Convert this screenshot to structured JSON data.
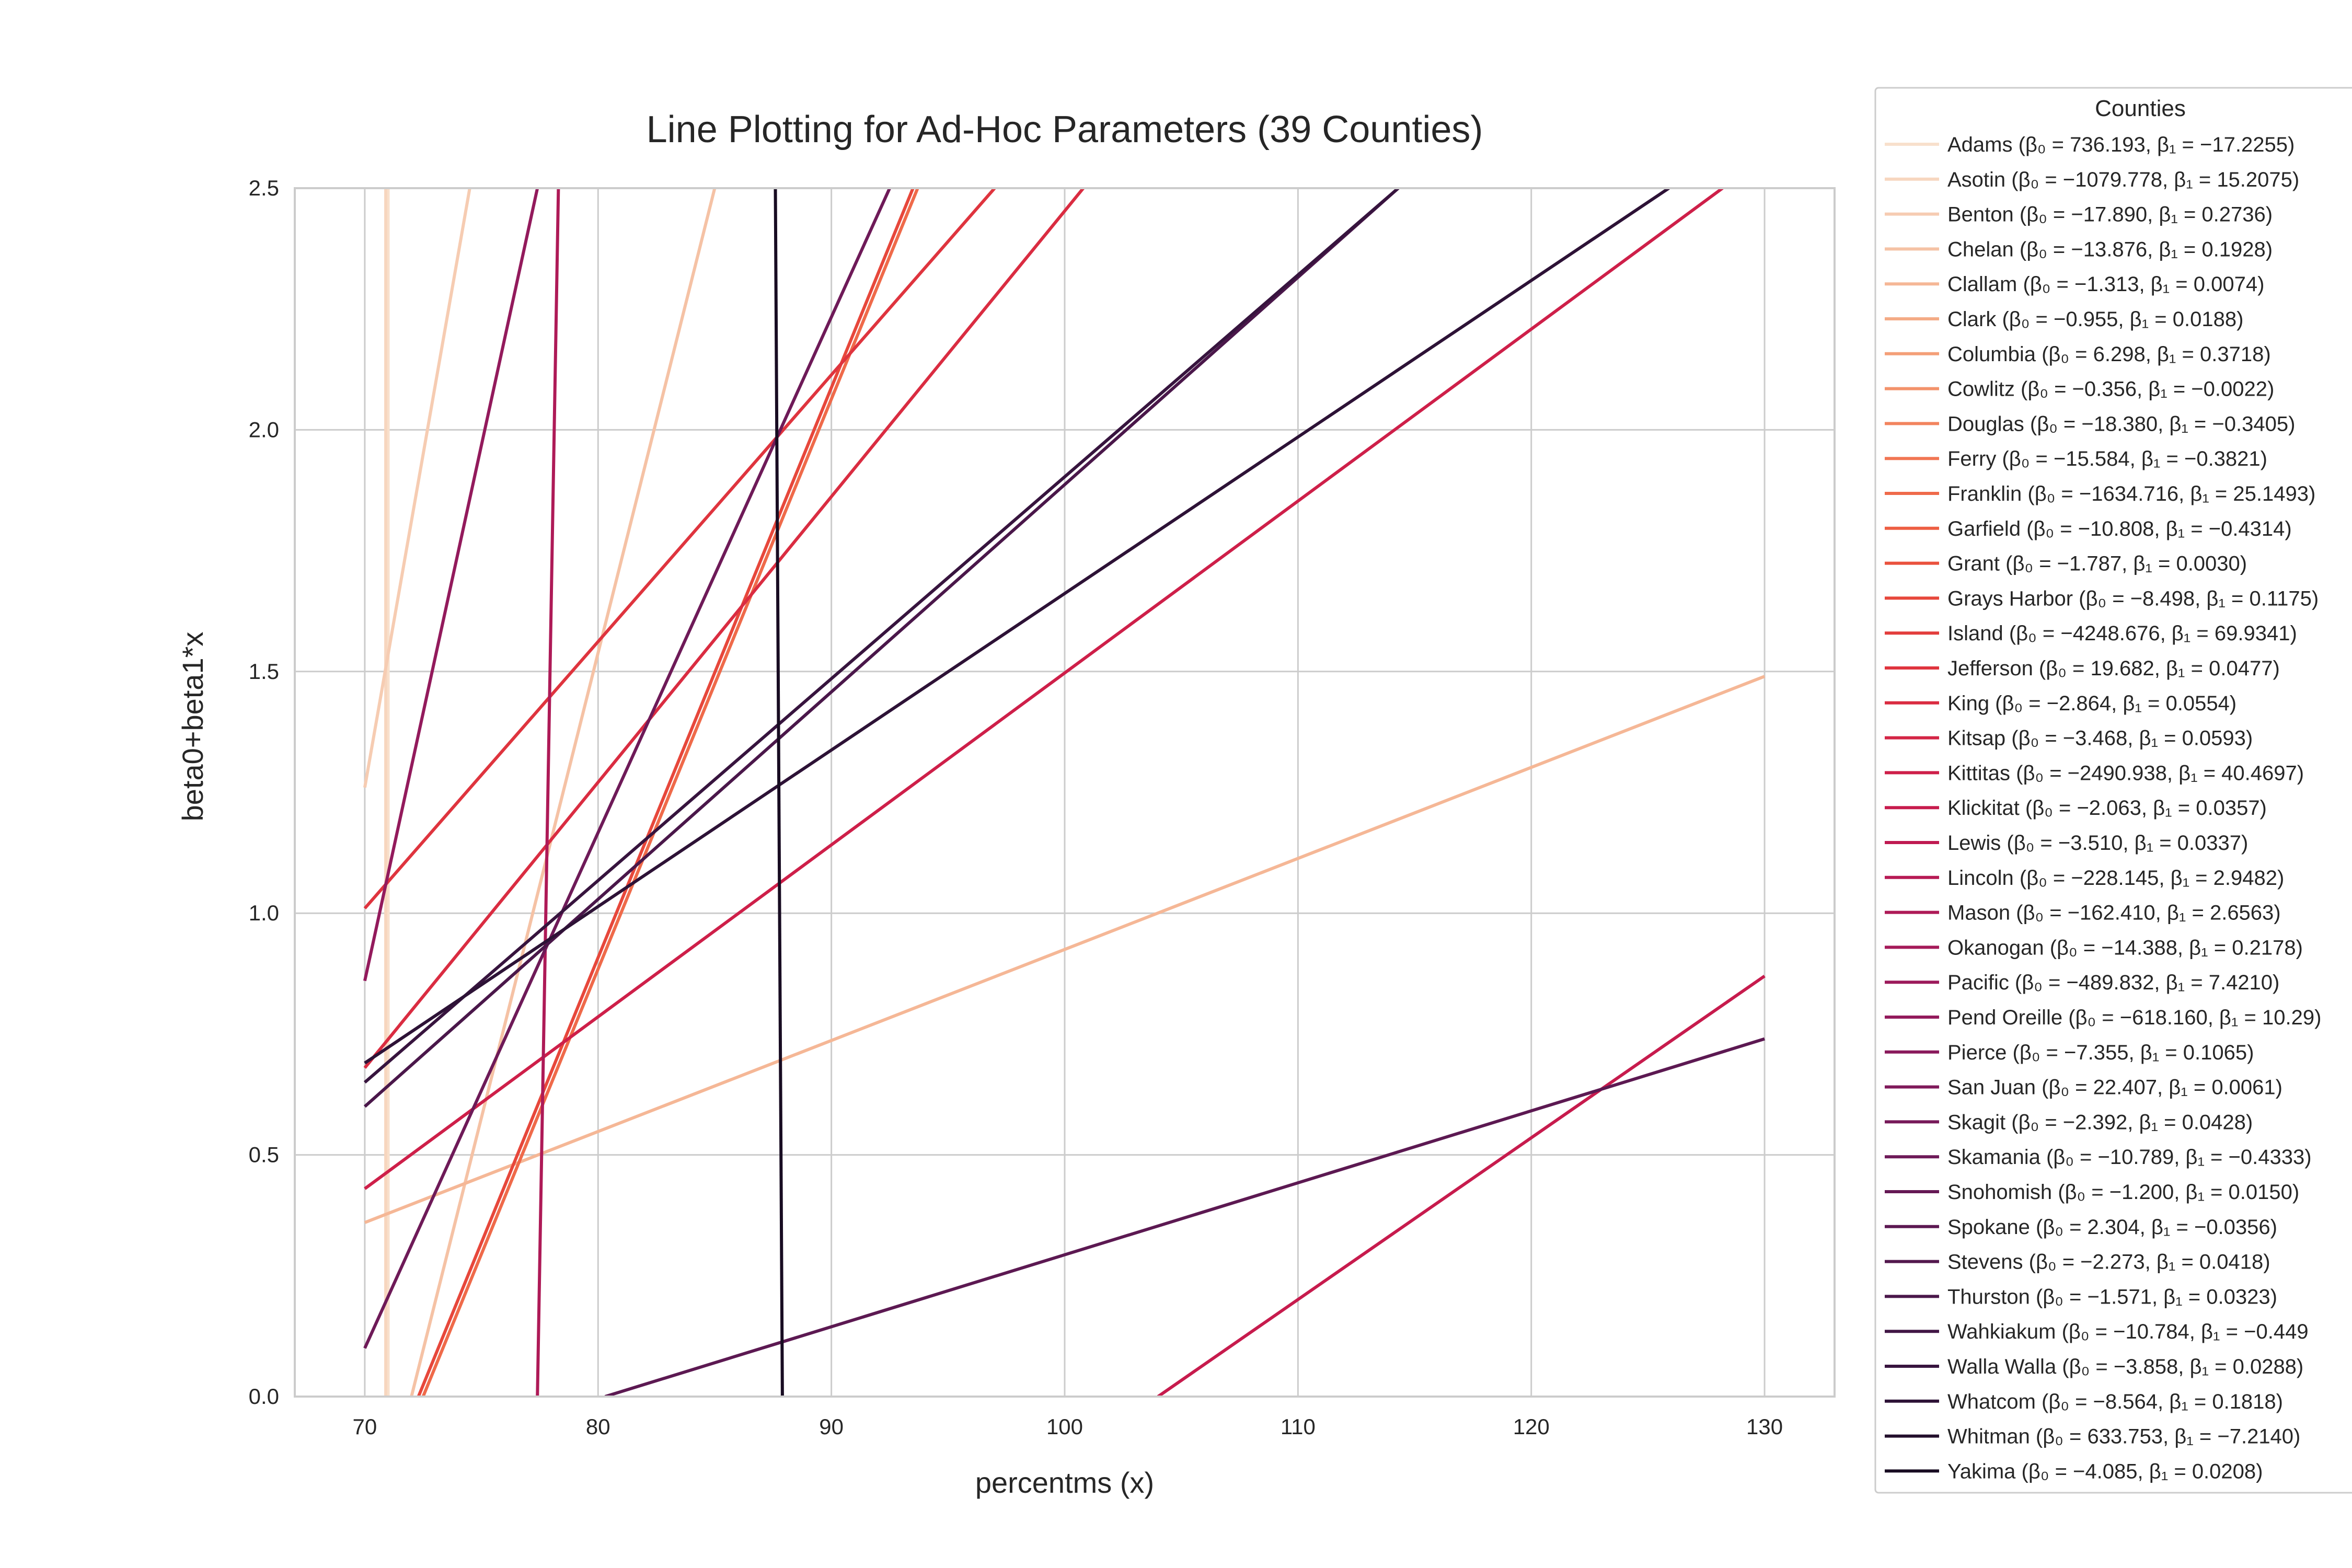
{
  "chart_data": {
    "type": "line",
    "title": "Line Plotting for Ad-Hoc Parameters (39 Counties)",
    "xlabel": "percentms (x)",
    "ylabel": "beta0+beta1*x",
    "xlim": [
      67,
      133
    ],
    "ylim": [
      0.0,
      2.5
    ],
    "x_range": [
      70,
      130
    ],
    "xticks": [
      "70",
      "80",
      "90",
      "100",
      "110",
      "120",
      "130"
    ],
    "yticks": [
      "0.0",
      "0.5",
      "1.0",
      "1.5",
      "2.0",
      "2.5"
    ],
    "grid": true,
    "legend_title": "Counties",
    "legend_position": "outside right",
    "series": [
      {
        "name": "Adams",
        "legend": "Adams (β₀ = 736.193, β₁ = −17.2255)",
        "beta0": 736.193,
        "beta1": -17.2255,
        "color": "#f8e0cc"
      },
      {
        "name": "Asotin",
        "legend": "Asotin (β₀ = −1079.778, β₁ = 15.2075)",
        "beta0": -1079.778,
        "beta1": 15.2075,
        "color": "#f7d6bf"
      },
      {
        "name": "Benton",
        "legend": "Benton (β₀ = −17.890, β₁ = 0.2736)",
        "beta0": -17.89,
        "beta1": 0.2736,
        "color": "#f6ccb2"
      },
      {
        "name": "Chelan",
        "legend": "Chelan (β₀ = −13.876, β₁ = 0.1928)",
        "beta0": -13.876,
        "beta1": 0.1928,
        "color": "#f5c2a5"
      },
      {
        "name": "Clallam",
        "legend": "Clallam (β₀ = −1.313, β₁ = 0.0074)",
        "beta0": -1.313,
        "beta1": 0.0074,
        "color": "#f5b796"
      },
      {
        "name": "Clark",
        "legend": "Clark (β₀ = −0.955, β₁ = 0.0188)",
        "beta0": -0.955,
        "beta1": 0.0188,
        "color": "#f4ab86"
      },
      {
        "name": "Columbia",
        "legend": "Columbia (β₀ = 6.298, β₁ = 0.3718)",
        "beta0": 6.298,
        "beta1": 0.3718,
        "color": "#f49f78"
      },
      {
        "name": "Cowlitz",
        "legend": "Cowlitz (β₀ = −0.356, β₁ = −0.0022)",
        "beta0": -0.356,
        "beta1": -0.0022,
        "color": "#f3926b"
      },
      {
        "name": "Douglas",
        "legend": "Douglas (β₀ = −18.380, β₁ = −0.3405)",
        "beta0": -18.38,
        "beta1": -0.3405,
        "color": "#f2845e"
      },
      {
        "name": "Ferry",
        "legend": "Ferry (β₀ = −15.584, β₁ = −0.3821)",
        "beta0": -15.584,
        "beta1": -0.3821,
        "color": "#f17653"
      },
      {
        "name": "Franklin",
        "legend": "Franklin (β₀ = −1634.716, β₁ = 25.1493)",
        "beta0": -1634.716,
        "beta1": 25.1493,
        "color": "#ef6a4a"
      },
      {
        "name": "Garfield",
        "legend": "Garfield (β₀ = −10.808, β₁ = −0.4314)",
        "beta0": -10.808,
        "beta1": -0.4314,
        "color": "#ed5e42"
      },
      {
        "name": "Grant",
        "legend": "Grant (β₀ = −1.787, β₁ = 0.0030)",
        "beta0": -1.787,
        "beta1": 0.003,
        "color": "#ea523d"
      },
      {
        "name": "Grays Harbor",
        "legend": "Grays Harbor (β₀ = −8.498, β₁ = 0.1175)",
        "beta0": -8.498,
        "beta1": 0.1175,
        "color": "#e7473b"
      },
      {
        "name": "Island",
        "legend": "Island (β₀ = −4248.676, β₁ = 69.9341)",
        "beta0": -4248.676,
        "beta1": 69.9341,
        "color": "#e33d3c"
      },
      {
        "name": "Jefferson",
        "legend": "Jefferson (β₀ = 19.682, β₁ = 0.0477)",
        "beta0": 19.682,
        "beta1": 0.0477,
        "color": "#df343e"
      },
      {
        "name": "King",
        "legend": "King (β₀ = −2.864, β₁ = 0.0554)",
        "beta0": -2.864,
        "beta1": 0.0554,
        "color": "#da2c41"
      },
      {
        "name": "Kitsap",
        "legend": "Kitsap (β₀ = −3.468, β₁ = 0.0593)",
        "beta0": -3.468,
        "beta1": 0.0593,
        "color": "#d42545"
      },
      {
        "name": "Kittitas",
        "legend": "Kittitas (β₀ = −2490.938, β₁ = 40.4697)",
        "beta0": -2490.938,
        "beta1": 40.4697,
        "color": "#ce1f49"
      },
      {
        "name": "Klickitat",
        "legend": "Klickitat (β₀ = −2.063, β₁ = 0.0357)",
        "beta0": -2.063,
        "beta1": 0.0357,
        "color": "#c71b4d"
      },
      {
        "name": "Lewis",
        "legend": "Lewis (β₀ = −3.510, β₁ = 0.0337)",
        "beta0": -3.51,
        "beta1": 0.0337,
        "color": "#bf1a51"
      },
      {
        "name": "Lincoln",
        "legend": "Lincoln (β₀ = −228.145, β₁ = 2.9482)",
        "beta0": -228.145,
        "beta1": 2.9482,
        "color": "#b71a54"
      },
      {
        "name": "Mason",
        "legend": "Mason (β₀ = −162.410, β₁ = 2.6563)",
        "beta0": -162.41,
        "beta1": 2.6563,
        "color": "#ae1a57"
      },
      {
        "name": "Okanogan",
        "legend": "Okanogan (β₀ = −14.388, β₁ = 0.2178)",
        "beta0": -14.388,
        "beta1": 0.2178,
        "color": "#a51a59"
      },
      {
        "name": "Pacific",
        "legend": "Pacific (β₀ = −489.832, β₁ = 7.4210)",
        "beta0": -489.832,
        "beta1": 7.421,
        "color": "#9c1a5b"
      },
      {
        "name": "Pend Oreille",
        "legend": "Pend Oreille (β₀ = −618.160, β₁ = 10.29)",
        "beta0": -618.16,
        "beta1": 10.29,
        "color": "#931a5c"
      },
      {
        "name": "Pierce",
        "legend": "Pierce (β₀ = −7.355, β₁ = 0.1065)",
        "beta0": -7.355,
        "beta1": 0.1065,
        "color": "#8a1a5c"
      },
      {
        "name": "San Juan",
        "legend": "San Juan (β₀ = 22.407, β₁ = 0.0061)",
        "beta0": 22.407,
        "beta1": 0.0061,
        "color": "#801a5b"
      },
      {
        "name": "Skagit",
        "legend": "Skagit (β₀ = −2.392, β₁ = 0.0428)",
        "beta0": -2.392,
        "beta1": 0.0428,
        "color": "#771a5a"
      },
      {
        "name": "Skamania",
        "legend": "Skamania (β₀ = −10.789, β₁ = −0.4333)",
        "beta0": -10.789,
        "beta1": -0.4333,
        "color": "#6e1a58"
      },
      {
        "name": "Snohomish",
        "legend": "Snohomish (β₀ = −1.200, β₁ = 0.0150)",
        "beta0": -1.2,
        "beta1": 0.015,
        "color": "#651955"
      },
      {
        "name": "Spokane",
        "legend": "Spokane (β₀ = 2.304, β₁ = −0.0356)",
        "beta0": 2.304,
        "beta1": -0.0356,
        "color": "#5c1952"
      },
      {
        "name": "Stevens",
        "legend": "Stevens (β₀ = −2.273, β₁ = 0.0418)",
        "beta0": -2.273,
        "beta1": 0.0418,
        "color": "#53184e"
      },
      {
        "name": "Thurston",
        "legend": "Thurston (β₀ = −1.571, β₁ = 0.0323)",
        "beta0": -1.571,
        "beta1": 0.0323,
        "color": "#4a174a"
      },
      {
        "name": "Wahkiakum",
        "legend": "Wahkiakum (β₀ = −10.784, β₁ = −0.449",
        "beta0": -10.784,
        "beta1": -0.449,
        "color": "#411645"
      },
      {
        "name": "Walla Walla",
        "legend": "Walla Walla (β₀ = −3.858, β₁ = 0.0288)",
        "beta0": -3.858,
        "beta1": 0.0288,
        "color": "#37143e"
      },
      {
        "name": "Whatcom",
        "legend": "Whatcom (β₀ = −8.564, β₁ = 0.1818)",
        "beta0": -8.564,
        "beta1": 0.1818,
        "color": "#2d1236"
      },
      {
        "name": "Whitman",
        "legend": "Whitman (β₀ = 633.753, β₁ = −7.2140)",
        "beta0": 633.753,
        "beta1": -7.214,
        "color": "#230f2c"
      },
      {
        "name": "Yakima",
        "legend": "Yakima (β₀ = −4.085, β₁ = 0.0208)",
        "beta0": -4.085,
        "beta1": 0.0208,
        "color": "#180c22"
      }
    ],
    "visible_lines": [
      {
        "points": [
          [
            71.0,
            0.0
          ],
          [
            71.0,
            2.5
          ]
        ],
        "color": "#f8e0cc"
      },
      {
        "points": [
          [
            70.9,
            0.0
          ],
          [
            70.9,
            2.5
          ]
        ],
        "color": "#f7d6bf"
      },
      {
        "points": [
          [
            70.0,
            1.26
          ],
          [
            74.5,
            2.5
          ]
        ],
        "color": "#f6ccb2"
      },
      {
        "points": [
          [
            72.0,
            0.0
          ],
          [
            85.0,
            2.5
          ]
        ],
        "color": "#f5c2a5"
      },
      {
        "points": [
          [
            70.0,
            0.36
          ],
          [
            130.0,
            1.49
          ]
        ],
        "color": "#f5b796"
      },
      {
        "points": [
          [
            72.5,
            0.0
          ],
          [
            93.7,
            2.5
          ]
        ],
        "color": "#ef6a4a"
      },
      {
        "points": [
          [
            72.3,
            0.0
          ],
          [
            93.5,
            2.5
          ]
        ],
        "color": "#e7473b"
      },
      {
        "points": [
          [
            70.0,
            1.01
          ],
          [
            97.0,
            2.5
          ]
        ],
        "color": "#df343e"
      },
      {
        "points": [
          [
            70.0,
            0.68
          ],
          [
            100.8,
            2.5
          ]
        ],
        "color": "#da2c41"
      },
      {
        "points": [
          [
            70.0,
            0.43
          ],
          [
            128.2,
            2.5
          ]
        ],
        "color": "#ce1f49"
      },
      {
        "points": [
          [
            104.0,
            0.0
          ],
          [
            130.0,
            0.87
          ]
        ],
        "color": "#c71b4d"
      },
      {
        "points": [
          [
            77.4,
            0.0
          ],
          [
            78.3,
            2.5
          ]
        ],
        "color": "#ae1a57"
      },
      {
        "points": [
          [
            70.0,
            0.86
          ],
          [
            77.4,
            2.5
          ]
        ],
        "color": "#931a5c"
      },
      {
        "points": [
          [
            70.0,
            0.1
          ],
          [
            92.5,
            2.5
          ]
        ],
        "color": "#6e1a58"
      },
      {
        "points": [
          [
            80.3,
            0.0
          ],
          [
            130.0,
            0.74
          ]
        ],
        "color": "#5c1952"
      },
      {
        "points": [
          [
            70.0,
            0.6
          ],
          [
            114.3,
            2.5
          ]
        ],
        "color": "#4a174a"
      },
      {
        "points": [
          [
            70.0,
            0.65
          ],
          [
            114.3,
            2.5
          ]
        ],
        "color": "#37143e"
      },
      {
        "points": [
          [
            70.0,
            0.69
          ],
          [
            125.9,
            2.5
          ]
        ],
        "color": "#2d1236"
      },
      {
        "points": [
          [
            87.6,
            2.5
          ],
          [
            87.9,
            0.0
          ]
        ],
        "color": "#180c22"
      }
    ]
  }
}
